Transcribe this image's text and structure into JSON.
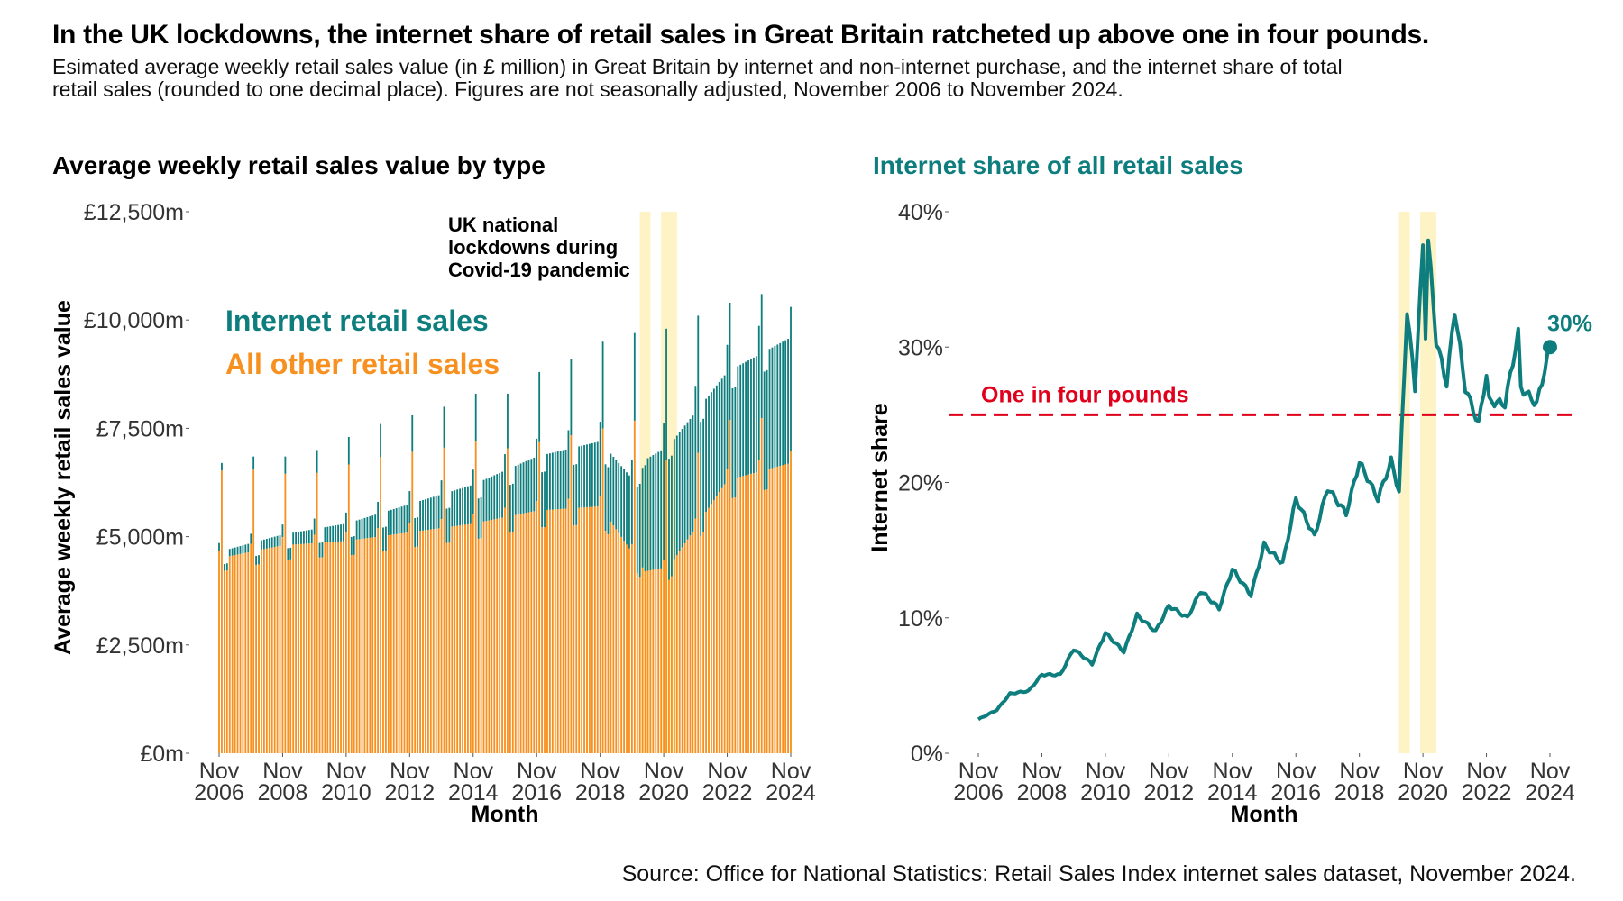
{
  "title": "In the UK lockdowns, the internet share of retail sales in Great Britain ratcheted up above one in four pounds.",
  "subtitle": "Esimated average weekly retail sales value (in £ million) in Great Britain by internet and non-internet purchase, and the internet share of total retail sales (rounded to one decimal place). Figures are not seasonally adjusted, November 2006 to November 2024.",
  "source": "Source: Office for National Statistics: Retail Sales Index internet sales dataset, November 2024.",
  "colors": {
    "internet": "#0e7d7d",
    "other": "#f7901e",
    "lockdown": "#fdf3c4",
    "threshold": "#e0001b"
  },
  "chart_data": [
    {
      "type": "bar",
      "stacked": true,
      "title": "Average weekly retail sales value by type",
      "xlabel": "Month",
      "ylabel": "Average weekly retail sales value",
      "ylim": [
        0,
        12500
      ],
      "y_ticks": [
        "£0m",
        "£2,500m",
        "£5,000m",
        "£7,500m",
        "£10,000m",
        "£12,500m"
      ],
      "x_ticks": [
        {
          "label": [
            "Nov",
            "2006"
          ],
          "date": "2006-11"
        },
        {
          "label": [
            "Nov",
            "2008"
          ],
          "date": "2008-11"
        },
        {
          "label": [
            "Nov",
            "2010"
          ],
          "date": "2010-11"
        },
        {
          "label": [
            "Nov",
            "2012"
          ],
          "date": "2012-11"
        },
        {
          "label": [
            "Nov",
            "2014"
          ],
          "date": "2014-11"
        },
        {
          "label": [
            "Nov",
            "2016"
          ],
          "date": "2016-11"
        },
        {
          "label": [
            "Nov",
            "2018"
          ],
          "date": "2018-11"
        },
        {
          "label": [
            "Nov",
            "2020"
          ],
          "date": "2020-11"
        },
        {
          "label": [
            "Nov",
            "2022"
          ],
          "date": "2022-11"
        },
        {
          "label": [
            "Nov",
            "2024"
          ],
          "date": "2024-11"
        }
      ],
      "x_range": [
        "2006-11",
        "2024-11"
      ],
      "series": [
        {
          "name": "Internet retail sales"
        },
        {
          "name": "All other retail sales"
        }
      ],
      "annotation": "UK national lockdowns during Covid-19 pandemic",
      "lockdowns": [
        [
          "2020-03",
          "2020-05"
        ],
        [
          "2020-11",
          "2020-11"
        ],
        [
          "2021-01",
          "2021-03"
        ]
      ],
      "monthly_internet_approx": [
        [
          "2006-11",
          150
        ],
        [
          "2008-11",
          250
        ],
        [
          "2010-11",
          400
        ],
        [
          "2012-11",
          650
        ],
        [
          "2014-11",
          900
        ],
        [
          "2016-11",
          1250
        ],
        [
          "2018-11",
          1500
        ],
        [
          "2019-11",
          1700
        ],
        [
          "2020-05",
          2600
        ],
        [
          "2021-01",
          2800
        ],
        [
          "2022-11",
          2500
        ],
        [
          "2024-11",
          2900
        ]
      ],
      "monthly_other_approx": [
        [
          "2006-11",
          4500
        ],
        [
          "2008-11",
          4800
        ],
        [
          "2010-11",
          4900
        ],
        [
          "2012-11",
          5100
        ],
        [
          "2014-11",
          5300
        ],
        [
          "2016-11",
          5600
        ],
        [
          "2018-11",
          5700
        ],
        [
          "2020-04",
          4200
        ],
        [
          "2021-01",
          4300
        ],
        [
          "2022-11",
          6300
        ],
        [
          "2024-11",
          6700
        ]
      ],
      "december_peaks_total": [
        [
          "2006-12",
          6700
        ],
        [
          "2007-12",
          6850
        ],
        [
          "2008-12",
          6850
        ],
        [
          "2009-12",
          7000
        ],
        [
          "2010-12",
          7300
        ],
        [
          "2011-12",
          7600
        ],
        [
          "2012-12",
          7800
        ],
        [
          "2013-12",
          8000
        ],
        [
          "2014-12",
          8300
        ],
        [
          "2015-12",
          8300
        ],
        [
          "2016-12",
          8800
        ],
        [
          "2017-12",
          9100
        ],
        [
          "2018-12",
          9500
        ],
        [
          "2019-12",
          9700
        ],
        [
          "2020-12",
          9800
        ],
        [
          "2021-12",
          10100
        ],
        [
          "2022-12",
          10400
        ],
        [
          "2023-12",
          10600
        ]
      ]
    },
    {
      "type": "line",
      "title": "Internet share of all retail sales",
      "xlabel": "Month",
      "ylabel": "Internet share",
      "ylim": [
        0,
        40
      ],
      "y_ticks": [
        "0%",
        "10%",
        "20%",
        "30%",
        "40%"
      ],
      "x_ticks": [
        {
          "label": [
            "Nov",
            "2006"
          ],
          "date": "2006-11"
        },
        {
          "label": [
            "Nov",
            "2008"
          ],
          "date": "2008-11"
        },
        {
          "label": [
            "Nov",
            "2010"
          ],
          "date": "2010-11"
        },
        {
          "label": [
            "Nov",
            "2012"
          ],
          "date": "2012-11"
        },
        {
          "label": [
            "Nov",
            "2014"
          ],
          "date": "2014-11"
        },
        {
          "label": [
            "Nov",
            "2016"
          ],
          "date": "2016-11"
        },
        {
          "label": [
            "Nov",
            "2018"
          ],
          "date": "2018-11"
        },
        {
          "label": [
            "Nov",
            "2020"
          ],
          "date": "2020-11"
        },
        {
          "label": [
            "Nov",
            "2022"
          ],
          "date": "2022-11"
        },
        {
          "label": [
            "Nov",
            "2024"
          ],
          "date": "2024-11"
        }
      ],
      "x_range": [
        "2006-11",
        "2024-11"
      ],
      "threshold": {
        "value": 25,
        "label": "One in four pounds"
      },
      "end_label": "30%",
      "lockdowns": [
        [
          "2020-03",
          "2020-05"
        ],
        [
          "2020-11",
          "2020-11"
        ],
        [
          "2021-01",
          "2021-03"
        ]
      ],
      "points": [
        [
          "2006-11",
          2.5
        ],
        [
          "2007-06",
          3.2
        ],
        [
          "2007-11",
          4.4
        ],
        [
          "2008-06",
          4.6
        ],
        [
          "2008-11",
          5.8
        ],
        [
          "2009-06",
          5.8
        ],
        [
          "2009-11",
          7.7
        ],
        [
          "2010-06",
          6.6
        ],
        [
          "2010-11",
          8.9
        ],
        [
          "2011-06",
          7.5
        ],
        [
          "2011-11",
          10.2
        ],
        [
          "2012-06",
          9.0
        ],
        [
          "2012-11",
          10.9
        ],
        [
          "2013-06",
          10.0
        ],
        [
          "2013-11",
          12.0
        ],
        [
          "2014-06",
          10.7
        ],
        [
          "2014-11",
          13.6
        ],
        [
          "2015-06",
          11.7
        ],
        [
          "2015-11",
          15.4
        ],
        [
          "2016-06",
          14.0
        ],
        [
          "2016-11",
          18.8
        ],
        [
          "2017-06",
          16.0
        ],
        [
          "2017-11",
          19.6
        ],
        [
          "2018-06",
          17.7
        ],
        [
          "2018-11",
          21.5
        ],
        [
          "2019-06",
          18.8
        ],
        [
          "2019-11",
          21.6
        ],
        [
          "2020-02",
          19.3
        ],
        [
          "2020-05",
          32.8
        ],
        [
          "2020-08",
          27.0
        ],
        [
          "2020-11",
          37.4
        ],
        [
          "2020-12",
          31.0
        ],
        [
          "2021-01",
          37.9
        ],
        [
          "2021-04",
          30.5
        ],
        [
          "2021-08",
          27.3
        ],
        [
          "2021-11",
          32.8
        ],
        [
          "2022-03",
          27.0
        ],
        [
          "2022-08",
          24.3
        ],
        [
          "2022-11",
          28.0
        ],
        [
          "2022-12",
          26.0
        ],
        [
          "2023-06",
          25.8
        ],
        [
          "2023-11",
          31.0
        ],
        [
          "2023-12",
          27.0
        ],
        [
          "2024-06",
          25.8
        ],
        [
          "2024-11",
          30.0
        ]
      ]
    }
  ]
}
